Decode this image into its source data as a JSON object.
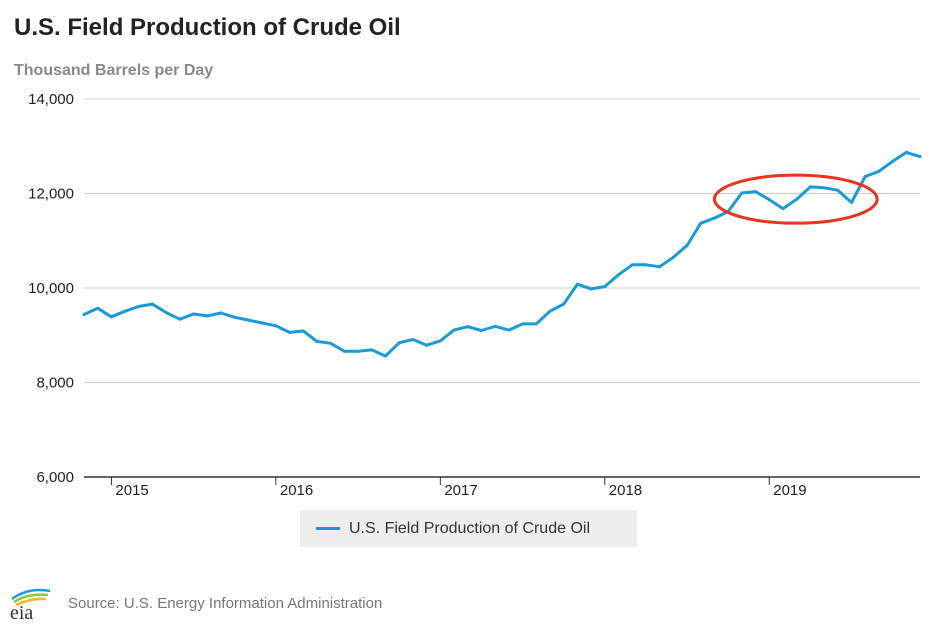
{
  "title": "U.S. Field Production of Crude Oil",
  "subtitle": "Thousand Barrels per Day",
  "source": "Source: U.S. Energy Information Administration",
  "logo": {
    "text": "eia",
    "icon": "eia-logo-icon"
  },
  "colors": {
    "series": "#1a9bd7",
    "annotation": "#e8341c",
    "grid": "#cccccc",
    "axis": "#333333",
    "legend_bg": "#eeeeee"
  },
  "chart_data": {
    "type": "line",
    "title": "U.S. Field Production of Crude Oil",
    "ylabel": "Thousand Barrels per Day",
    "xlabel": "",
    "ylim": [
      6000,
      14000
    ],
    "xlim": [
      "2014-11",
      "2019-12"
    ],
    "yticks": [
      "6,000",
      "8,000",
      "10,000",
      "12,000",
      "14,000"
    ],
    "xticks": [
      "2015",
      "2016",
      "2017",
      "2018",
      "2019"
    ],
    "grid": "horizontal",
    "legend_position": "bottom-center",
    "annotation": "red ellipse around late 2018 - mid 2019",
    "series": [
      {
        "name": "U.S. Field Production of Crude Oil",
        "x": [
          "2014-11",
          "2014-12",
          "2015-01",
          "2015-02",
          "2015-03",
          "2015-04",
          "2015-05",
          "2015-06",
          "2015-07",
          "2015-08",
          "2015-09",
          "2015-10",
          "2015-11",
          "2015-12",
          "2016-01",
          "2016-02",
          "2016-03",
          "2016-04",
          "2016-05",
          "2016-06",
          "2016-07",
          "2016-08",
          "2016-09",
          "2016-10",
          "2016-11",
          "2016-12",
          "2017-01",
          "2017-02",
          "2017-03",
          "2017-04",
          "2017-05",
          "2017-06",
          "2017-07",
          "2017-08",
          "2017-09",
          "2017-10",
          "2017-11",
          "2017-12",
          "2018-01",
          "2018-02",
          "2018-03",
          "2018-04",
          "2018-05",
          "2018-06",
          "2018-07",
          "2018-08",
          "2018-09",
          "2018-10",
          "2018-11",
          "2018-12",
          "2019-01",
          "2019-02",
          "2019-03",
          "2019-04",
          "2019-05",
          "2019-06",
          "2019-07",
          "2019-08",
          "2019-09",
          "2019-10",
          "2019-11",
          "2019-12"
        ],
        "values": [
          9440,
          9570,
          9390,
          9510,
          9610,
          9660,
          9480,
          9340,
          9450,
          9410,
          9470,
          9380,
          9320,
          9260,
          9200,
          9060,
          9090,
          8870,
          8830,
          8660,
          8660,
          8690,
          8560,
          8840,
          8910,
          8790,
          8880,
          9110,
          9180,
          9100,
          9190,
          9110,
          9240,
          9240,
          9510,
          9660,
          10080,
          9980,
          10030,
          10280,
          10490,
          10490,
          10450,
          10650,
          10900,
          11370,
          11480,
          11620,
          12010,
          12040,
          11870,
          11680,
          11880,
          12140,
          12120,
          12070,
          11810,
          12360,
          12470,
          12680,
          12870,
          12780
        ]
      }
    ]
  }
}
